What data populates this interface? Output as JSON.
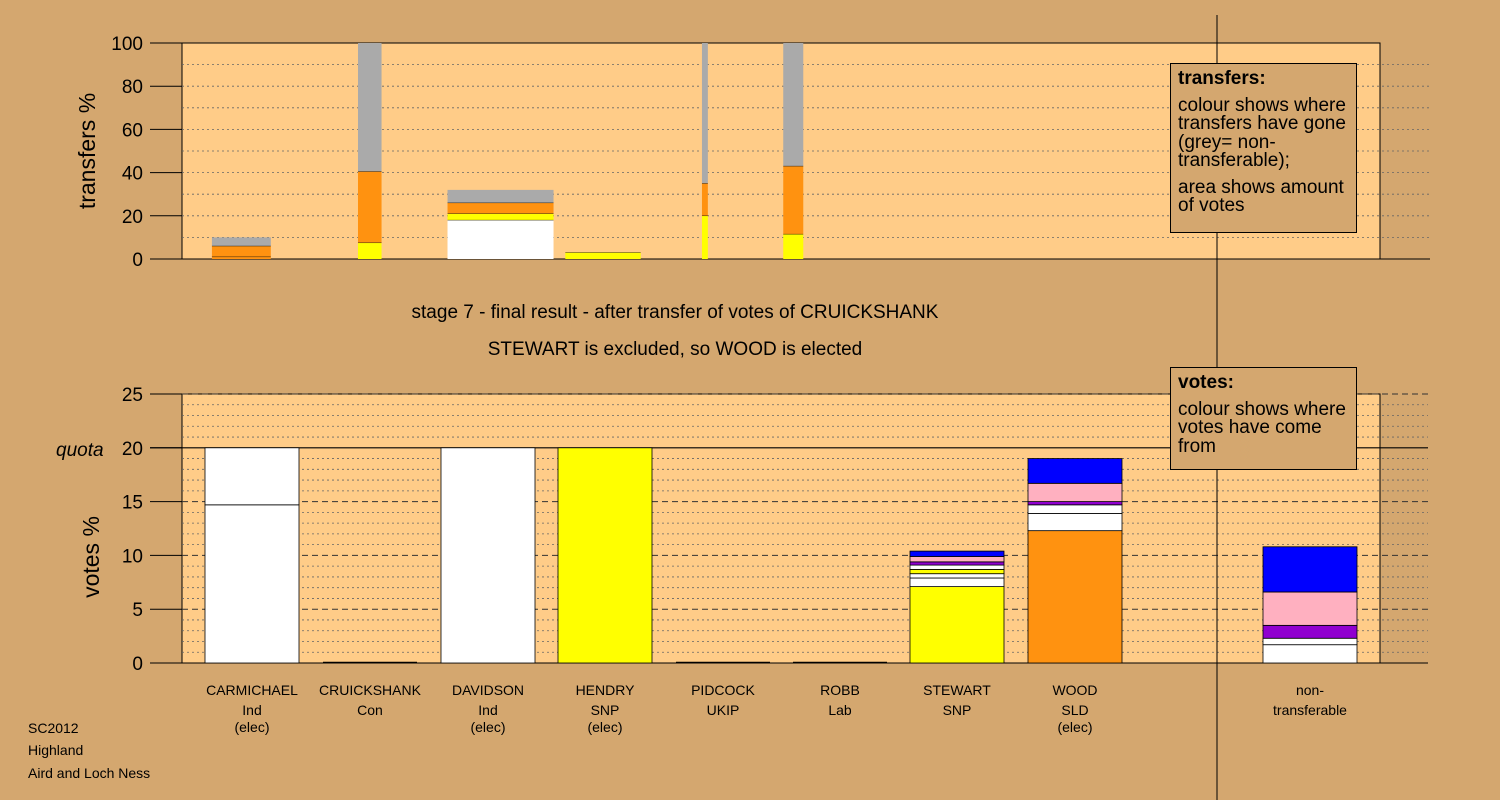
{
  "top_title": "stage 7 - final result - after transfer of votes of CRUICKSHANK",
  "sub_title": "STEWART is excluded, so WOOD is elected",
  "legend_transfers": {
    "title": "transfers:",
    "para1": "colour shows where transfers have gone (grey= non-transferable);",
    "para2": "area shows amount of votes"
  },
  "legend_votes": {
    "title": "votes:",
    "para1": "colour shows where votes have come from"
  },
  "footer": {
    "line1": "SC2012",
    "line2": "Highland",
    "line3": "Aird and Loch Ness"
  },
  "colors": {
    "background": "#D4A76F",
    "plot": "#FFCC88",
    "grey": "#AAAAAA",
    "orange": "#FF9210",
    "yellow": "#FFFF00",
    "white": "#FFFFFF",
    "blue": "#0000FF",
    "pink": "#FFB0C0",
    "purple": "#9000D0"
  },
  "chart_data": [
    {
      "type": "bar",
      "ylabel": "transfers %",
      "ylim": [
        0,
        100
      ],
      "yticks": [
        0,
        20,
        40,
        60,
        80,
        100
      ],
      "minor_step": 10,
      "grid": true,
      "bars": [
        {
          "name": "CARMICHAEL",
          "from": 0.22,
          "to": 0.72,
          "segments": [
            {
              "color": "orange",
              "value": 1
            },
            {
              "color": "orange",
              "value": 5
            },
            {
              "color": "grey",
              "value": 4
            }
          ]
        },
        {
          "name": "CRUICKSHANK",
          "from": 1.46,
          "to": 1.66,
          "segments": [
            {
              "color": "yellow",
              "value": 7.5
            },
            {
              "color": "orange",
              "value": 33
            },
            {
              "color": "grey",
              "value": 59.5
            }
          ]
        },
        {
          "name": "DAVIDSON",
          "from": 2.22,
          "to": 3.12,
          "segments": [
            {
              "color": "white",
              "value": 18
            },
            {
              "color": "yellow",
              "value": 3
            },
            {
              "color": "orange",
              "value": 5
            },
            {
              "color": "grey",
              "value": 6
            }
          ]
        },
        {
          "name": "HENDRY",
          "from": 3.22,
          "to": 3.86,
          "segments": [
            {
              "color": "yellow",
              "value": 3
            }
          ]
        },
        {
          "name": "PIDCOCK",
          "from": 4.38,
          "to": 4.43,
          "segments": [
            {
              "color": "yellow",
              "value": 20
            },
            {
              "color": "orange",
              "value": 15
            },
            {
              "color": "grey",
              "value": 65
            }
          ]
        },
        {
          "name": "ROBB",
          "from": 5.07,
          "to": 5.24,
          "segments": [
            {
              "color": "yellow",
              "value": 11.5
            },
            {
              "color": "orange",
              "value": 31.5
            },
            {
              "color": "grey",
              "value": 57
            }
          ]
        }
      ]
    },
    {
      "type": "bar",
      "ylabel": "votes %",
      "ylim": [
        0,
        25
      ],
      "yticks": [
        0,
        5,
        10,
        15,
        20,
        25
      ],
      "minor_step": 1,
      "quota": 20,
      "quota_label": "quota",
      "grid": true,
      "categories": [
        {
          "name": "CARMICHAEL",
          "party": "Ind",
          "status": "(elec)"
        },
        {
          "name": "CRUICKSHANK",
          "party": "Con",
          "status": ""
        },
        {
          "name": "DAVIDSON",
          "party": "Ind",
          "status": "(elec)"
        },
        {
          "name": "HENDRY",
          "party": "SNP",
          "status": "(elec)"
        },
        {
          "name": "PIDCOCK",
          "party": "UKIP",
          "status": ""
        },
        {
          "name": "ROBB",
          "party": "Lab",
          "status": ""
        },
        {
          "name": "STEWART",
          "party": "SNP",
          "status": ""
        },
        {
          "name": "WOOD",
          "party": "SLD",
          "status": "(elec)"
        },
        {
          "name": "non-transferable",
          "party": "",
          "status": ""
        }
      ],
      "stacks": [
        [
          {
            "color": "white",
            "value": 14.7
          },
          {
            "color": "white",
            "value": 5.3
          }
        ],
        [],
        [
          {
            "color": "white",
            "value": 20
          }
        ],
        [
          {
            "color": "yellow",
            "value": 20
          }
        ],
        [],
        [],
        [
          {
            "color": "yellow",
            "value": 7.1
          },
          {
            "color": "white",
            "value": 0.8
          },
          {
            "color": "white",
            "value": 0.4
          },
          {
            "color": "yellow",
            "value": 0.4
          },
          {
            "color": "white",
            "value": 0.4
          },
          {
            "color": "purple",
            "value": 0.3
          },
          {
            "color": "pink",
            "value": 0.5
          },
          {
            "color": "blue",
            "value": 0.5
          }
        ],
        [
          {
            "color": "orange",
            "value": 12.3
          },
          {
            "color": "white",
            "value": 1.6
          },
          {
            "color": "white",
            "value": 0.8
          },
          {
            "color": "purple",
            "value": 0.3
          },
          {
            "color": "pink",
            "value": 1.7
          },
          {
            "color": "blue",
            "value": 2.3
          }
        ],
        [
          {
            "color": "white",
            "value": 1.7
          },
          {
            "color": "white",
            "value": 0.6
          },
          {
            "color": "purple",
            "value": 1.2
          },
          {
            "color": "pink",
            "value": 3.1
          },
          {
            "color": "blue",
            "value": 4.2
          }
        ]
      ]
    }
  ]
}
